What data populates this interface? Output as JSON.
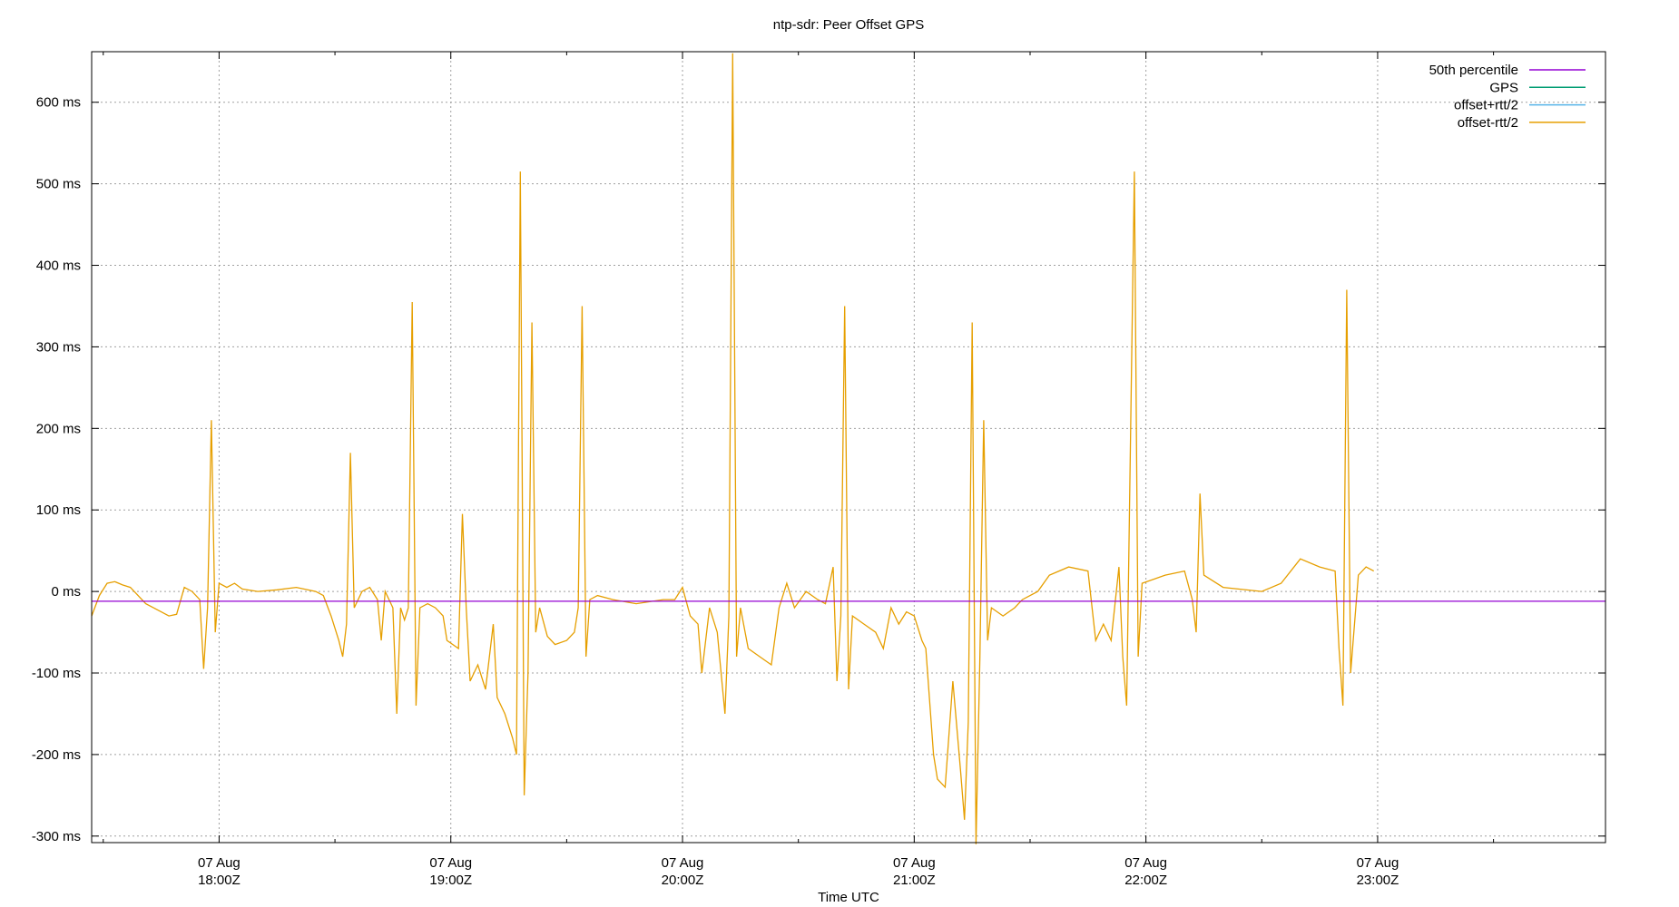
{
  "chart_data": {
    "type": "line",
    "title": "ntp-sdr: Peer Offset GPS",
    "x_label": "Time UTC",
    "xlim": [
      "17:27",
      "23:59"
    ],
    "xticks": [
      {
        "value": "18:00",
        "label": "07 Aug\n18:00Z"
      },
      {
        "value": "19:00",
        "label": "07 Aug\n19:00Z"
      },
      {
        "value": "20:00",
        "label": "07 Aug\n20:00Z"
      },
      {
        "value": "21:00",
        "label": "07 Aug\n21:00Z"
      },
      {
        "value": "22:00",
        "label": "07 Aug\n22:00Z"
      },
      {
        "value": "23:00",
        "label": "07 Aug\n23:00Z"
      }
    ],
    "xminorticks": [
      "17:30",
      "18:30",
      "19:30",
      "20:30",
      "21:30",
      "22:30",
      "23:30"
    ],
    "ylim": [
      -308,
      662
    ],
    "yticks": [
      {
        "value": -300,
        "label": "-300 ms"
      },
      {
        "value": -200,
        "label": "-200 ms"
      },
      {
        "value": -100,
        "label": "-100 ms"
      },
      {
        "value": 0,
        "label": "0 ms"
      },
      {
        "value": 100,
        "label": "100 ms"
      },
      {
        "value": 200,
        "label": "200 ms"
      },
      {
        "value": 300,
        "label": "300 ms"
      },
      {
        "value": 400,
        "label": "400 ms"
      },
      {
        "value": 500,
        "label": "500 ms"
      },
      {
        "value": 600,
        "label": "600 ms"
      }
    ],
    "grid": true,
    "legend": "top-right",
    "series": [
      {
        "name": "50th percentile",
        "color": "#9400d3",
        "x": [
          "17:27",
          "23:59"
        ],
        "values": [
          -12,
          -12
        ]
      },
      {
        "name": "GPS",
        "color": "#009e73",
        "x": [],
        "values": []
      },
      {
        "name": "offset+rtt/2",
        "color": "#56b4e9",
        "x": [],
        "values": []
      },
      {
        "name": "offset-rtt/2",
        "color": "#e69f00",
        "x": [
          "17:27",
          "17:29",
          "17:31",
          "17:33",
          "17:35",
          "17:37",
          "17:39",
          "17:41",
          "17:43",
          "17:45",
          "17:47",
          "17:49",
          "17:51",
          "17:53",
          "17:55",
          "17:56",
          "17:57",
          "17:58",
          "17:59",
          "18:00",
          "18:02",
          "18:04",
          "18:06",
          "18:10",
          "18:15",
          "18:20",
          "18:25",
          "18:27",
          "18:29",
          "18:31",
          "18:32",
          "18:33",
          "18:34",
          "18:35",
          "18:37",
          "18:39",
          "18:41",
          "18:42",
          "18:43",
          "18:45",
          "18:46",
          "18:47",
          "18:48",
          "18:49",
          "18:50",
          "18:51",
          "18:52",
          "18:54",
          "18:56",
          "18:58",
          "18:59",
          "19:02",
          "19:03",
          "19:04",
          "19:05",
          "19:07",
          "19:09",
          "19:11",
          "19:12",
          "19:14",
          "19:16",
          "19:17",
          "19:18",
          "19:19",
          "19:20",
          "19:21",
          "19:22",
          "19:23",
          "19:25",
          "19:27",
          "19:30",
          "19:32",
          "19:33",
          "19:34",
          "19:35",
          "19:36",
          "19:38",
          "19:42",
          "19:48",
          "19:55",
          "19:58",
          "20:00",
          "20:02",
          "20:04",
          "20:05",
          "20:07",
          "20:09",
          "20:11",
          "20:12",
          "20:13",
          "20:14",
          "20:15",
          "20:17",
          "20:20",
          "20:23",
          "20:25",
          "20:27",
          "20:29",
          "20:32",
          "20:35",
          "20:37",
          "20:39",
          "20:40",
          "20:41",
          "20:42",
          "20:43",
          "20:44",
          "20:47",
          "20:50",
          "20:52",
          "20:54",
          "20:56",
          "20:58",
          "21:00",
          "21:02",
          "21:03",
          "21:05",
          "21:06",
          "21:08",
          "21:10",
          "21:12",
          "21:13",
          "21:14",
          "21:15",
          "21:16",
          "21:17",
          "21:18",
          "21:19",
          "21:20",
          "21:23",
          "21:26",
          "21:28",
          "21:32",
          "21:35",
          "21:40",
          "21:45",
          "21:47",
          "21:49",
          "21:51",
          "21:53",
          "21:54",
          "21:55",
          "21:57",
          "21:58",
          "21:59",
          "22:05",
          "22:10",
          "22:12",
          "22:13",
          "22:14",
          "22:15",
          "22:20",
          "22:30",
          "22:35",
          "22:40",
          "22:45",
          "22:49",
          "22:50",
          "22:51",
          "22:52",
          "22:53",
          "22:55",
          "22:57",
          "22:59"
        ],
        "values": [
          -30,
          -5,
          10,
          12,
          8,
          5,
          -5,
          -15,
          -20,
          -25,
          -30,
          -28,
          5,
          0,
          -10,
          -95,
          -20,
          210,
          -50,
          10,
          5,
          10,
          3,
          0,
          2,
          5,
          0,
          -5,
          -30,
          -60,
          -80,
          -40,
          170,
          -20,
          0,
          5,
          -10,
          -60,
          0,
          -20,
          -150,
          -20,
          -35,
          -20,
          355,
          -140,
          -20,
          -15,
          -20,
          -30,
          -60,
          -70,
          95,
          -20,
          -110,
          -90,
          -120,
          -40,
          -130,
          -150,
          -180,
          -200,
          515,
          -250,
          -100,
          330,
          -50,
          -20,
          -55,
          -65,
          -60,
          -50,
          -20,
          350,
          -80,
          -10,
          -5,
          -10,
          -15,
          -10,
          -10,
          5,
          -30,
          -40,
          -100,
          -20,
          -50,
          -150,
          -30,
          660,
          -80,
          -20,
          -70,
          -80,
          -90,
          -20,
          10,
          -20,
          0,
          -10,
          -15,
          30,
          -110,
          -30,
          350,
          -120,
          -30,
          -40,
          -50,
          -70,
          -20,
          -40,
          -25,
          -30,
          -60,
          -70,
          -200,
          -230,
          -240,
          -110,
          -220,
          -280,
          -160,
          330,
          -310,
          -80,
          210,
          -60,
          -20,
          -30,
          -20,
          -10,
          0,
          20,
          30,
          25,
          -60,
          -40,
          -60,
          30,
          -80,
          -140,
          515,
          -80,
          10,
          20,
          25,
          -10,
          -50,
          120,
          20,
          5,
          0,
          10,
          40,
          30,
          25,
          -70,
          -140,
          370,
          -100,
          20,
          30,
          25
        ]
      }
    ]
  }
}
